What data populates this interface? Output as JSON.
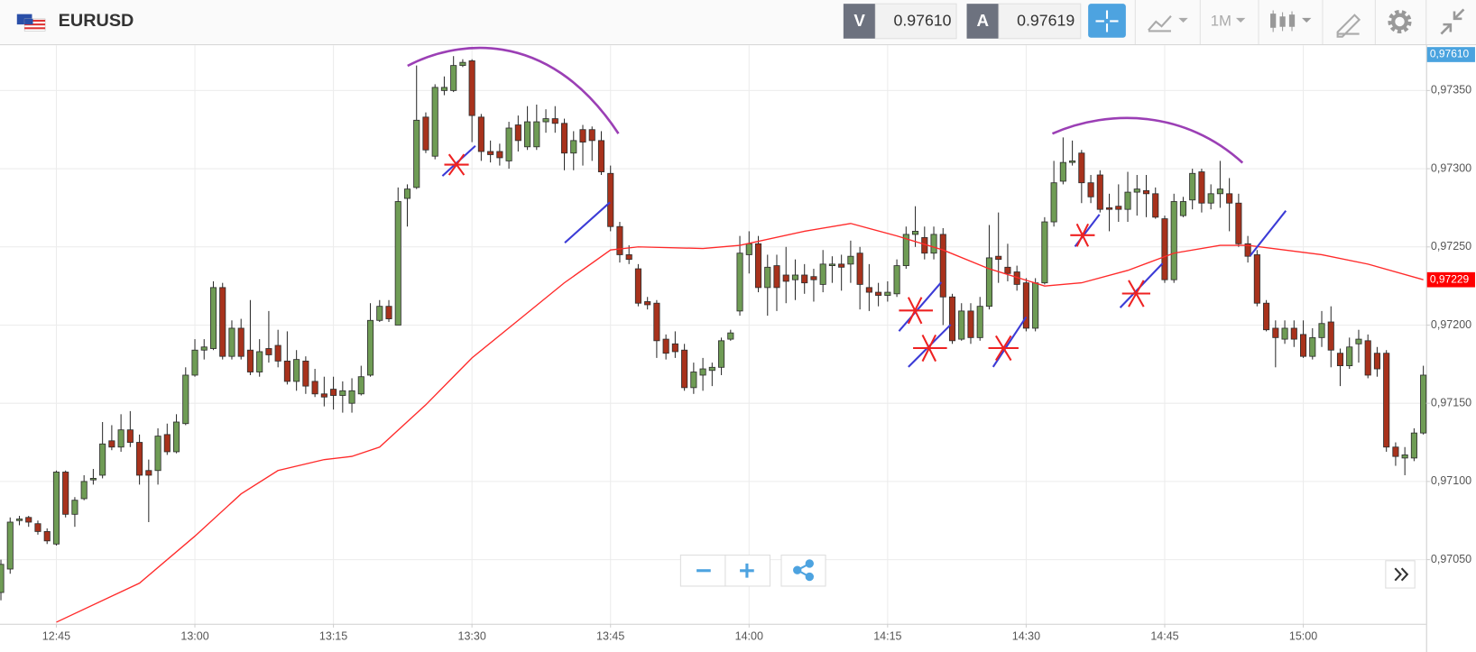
{
  "header": {
    "symbol": "EURUSD",
    "bid": {
      "label": "V",
      "price": "0.97610"
    },
    "ask": {
      "label": "A",
      "price": "0.97619"
    },
    "timeframe": "1M"
  },
  "chart_data": {
    "type": "candlestick",
    "up_color": "#6f9c55",
    "down_color": "#a8321c",
    "open": [
      0.97029,
      0.97044,
      0.97075,
      0.97077,
      0.97073,
      0.97068,
      0.9706,
      0.97106,
      0.97079,
      0.97089,
      0.97101,
      0.97104,
      0.97126,
      0.97122,
      0.97133,
      0.97125,
      0.97107,
      0.97107,
      0.9713,
      0.97119,
      0.97137,
      0.97168,
      0.97184,
      0.97185,
      0.97224,
      0.9718,
      0.97198,
      0.97184,
      0.9717,
      0.97185,
      0.97187,
      0.97177,
      0.97164,
      0.97177,
      0.97164,
      0.97156,
      0.97159,
      0.97155,
      0.9715,
      0.97156,
      0.97168,
      0.97203,
      0.97212,
      0.972,
      0.97281,
      0.97288,
      0.97333,
      0.97308,
      0.9735,
      0.9735,
      0.97366,
      0.97369,
      0.97333,
      0.97311,
      0.97311,
      0.97305,
      0.97328,
      0.97314,
      0.97314,
      0.9733,
      0.97332,
      0.97329,
      0.9731,
      0.97325,
      0.97325,
      0.97318,
      0.97297,
      0.97263,
      0.97245,
      0.97236,
      0.97215,
      0.97214,
      0.97191,
      0.97188,
      0.97184,
      0.9716,
      0.97168,
      0.97171,
      0.97173,
      0.97191,
      0.97209,
      0.97245,
      0.97252,
      0.97224,
      0.97238,
      0.97232,
      0.97229,
      0.97232,
      0.97231,
      0.97226,
      0.97238,
      0.97239,
      0.97239,
      0.97246,
      0.97224,
      0.97221,
      0.97219,
      0.9722,
      0.97238,
      0.97258,
      0.97256,
      0.97246,
      0.97258,
      0.97218,
      0.97191,
      0.97209,
      0.97192,
      0.97212,
      0.97244,
      0.97237,
      0.97234,
      0.97227,
      0.97198,
      0.97227,
      0.97266,
      0.97292,
      0.97304,
      0.9731,
      0.97291,
      0.97296,
      0.97275,
      0.97276,
      0.97274,
      0.97285,
      0.97286,
      0.97284,
      0.97268,
      0.97229,
      0.9727,
      0.9728,
      0.97298,
      0.97278,
      0.97284,
      0.97284,
      0.97278,
      0.97252,
      0.97245,
      0.97214,
      0.97198,
      0.97191,
      0.97198,
      0.97194,
      0.9718,
      0.97192,
      0.97202,
      0.97182,
      0.97174,
      0.97188,
      0.9719,
      0.97182,
      0.97182,
      0.97122,
      0.97115,
      0.97115,
      0.97131
    ],
    "high": [
      0.9705,
      0.97077,
      0.97078,
      0.97078,
      0.97075,
      0.9707,
      0.97107,
      0.97107,
      0.9709,
      0.97104,
      0.97108,
      0.97138,
      0.97136,
      0.97143,
      0.97145,
      0.9713,
      0.97114,
      0.97134,
      0.97137,
      0.97143,
      0.97173,
      0.97191,
      0.97191,
      0.97228,
      0.97227,
      0.97203,
      0.97204,
      0.97216,
      0.97191,
      0.97209,
      0.97197,
      0.97196,
      0.97184,
      0.9718,
      0.97172,
      0.97167,
      0.97167,
      0.97164,
      0.97166,
      0.97174,
      0.97214,
      0.97216,
      0.97216,
      0.97288,
      0.9729,
      0.97366,
      0.97336,
      0.97354,
      0.97359,
      0.97372,
      0.9737,
      0.9737,
      0.97335,
      0.97318,
      0.97316,
      0.9733,
      0.97334,
      0.9734,
      0.97341,
      0.97338,
      0.9734,
      0.97332,
      0.97324,
      0.97328,
      0.97327,
      0.97324,
      0.97302,
      0.97266,
      0.97251,
      0.97239,
      0.97218,
      0.97216,
      0.97194,
      0.97196,
      0.97188,
      0.97176,
      0.97179,
      0.97176,
      0.97192,
      0.97197,
      0.97257,
      0.9726,
      0.97257,
      0.97245,
      0.97245,
      0.9725,
      0.97242,
      0.97239,
      0.97236,
      0.97248,
      0.97244,
      0.97245,
      0.97254,
      0.9725,
      0.97239,
      0.97227,
      0.97228,
      0.97242,
      0.97263,
      0.97276,
      0.97263,
      0.97263,
      0.97262,
      0.9722,
      0.97214,
      0.97214,
      0.97218,
      0.97264,
      0.97272,
      0.97252,
      0.97238,
      0.9723,
      0.9723,
      0.97269,
      0.97305,
      0.9732,
      0.97318,
      0.97312,
      0.97296,
      0.97299,
      0.97284,
      0.9729,
      0.97298,
      0.97296,
      0.97296,
      0.97288,
      0.9727,
      0.97284,
      0.97282,
      0.973,
      0.973,
      0.9729,
      0.97305,
      0.97294,
      0.97284,
      0.97257,
      0.97248,
      0.97216,
      0.97203,
      0.97203,
      0.97203,
      0.97203,
      0.97198,
      0.97209,
      0.97212,
      0.97185,
      0.97192,
      0.97197,
      0.97194,
      0.97186,
      0.97184,
      0.97125,
      0.97122,
      0.97134,
      0.97174
    ],
    "low": [
      0.97024,
      0.97041,
      0.97072,
      0.97071,
      0.97066,
      0.9706,
      0.97059,
      0.97077,
      0.97071,
      0.97088,
      0.97098,
      0.97102,
      0.9712,
      0.97119,
      0.97122,
      0.97098,
      0.97074,
      0.97098,
      0.97117,
      0.97118,
      0.97136,
      0.97167,
      0.97178,
      0.97184,
      0.97178,
      0.97178,
      0.97178,
      0.97168,
      0.97167,
      0.97176,
      0.97173,
      0.97162,
      0.97158,
      0.97156,
      0.97154,
      0.97148,
      0.97146,
      0.97144,
      0.97144,
      0.97155,
      0.97167,
      0.97202,
      0.97202,
      0.972,
      0.97263,
      0.97287,
      0.9731,
      0.97306,
      0.97347,
      0.97349,
      0.97365,
      0.97317,
      0.97305,
      0.97304,
      0.97302,
      0.973,
      0.97311,
      0.97312,
      0.97312,
      0.97323,
      0.97323,
      0.97299,
      0.97299,
      0.97302,
      0.97305,
      0.97296,
      0.9726,
      0.9724,
      0.97239,
      0.97212,
      0.9721,
      0.97179,
      0.97178,
      0.97179,
      0.97158,
      0.97156,
      0.97158,
      0.97161,
      0.97168,
      0.9719,
      0.97206,
      0.97233,
      0.97221,
      0.97206,
      0.97209,
      0.97214,
      0.97216,
      0.9722,
      0.97215,
      0.97221,
      0.97227,
      0.97222,
      0.97227,
      0.9721,
      0.97209,
      0.97212,
      0.97215,
      0.97218,
      0.97236,
      0.9725,
      0.97242,
      0.97242,
      0.972,
      0.97188,
      0.9719,
      0.97188,
      0.9719,
      0.9721,
      0.97227,
      0.97228,
      0.97222,
      0.97196,
      0.97196,
      0.97226,
      0.97263,
      0.9729,
      0.97302,
      0.97278,
      0.97278,
      0.97272,
      0.9726,
      0.97266,
      0.97266,
      0.9727,
      0.97269,
      0.97268,
      0.97227,
      0.97227,
      0.97269,
      0.97274,
      0.97272,
      0.97274,
      0.97275,
      0.9726,
      0.9725,
      0.9724,
      0.97212,
      0.97196,
      0.97173,
      0.97188,
      0.97186,
      0.97179,
      0.97178,
      0.97186,
      0.97173,
      0.97161,
      0.97172,
      0.97176,
      0.97166,
      0.97167,
      0.97119,
      0.9711,
      0.97104,
      0.97113,
      0.9713
    ],
    "close": [
      0.97047,
      0.97074,
      0.97076,
      0.97074,
      0.97068,
      0.97062,
      0.97106,
      0.97079,
      0.97088,
      0.971,
      0.97102,
      0.97124,
      0.97122,
      0.97133,
      0.97125,
      0.97104,
      0.97104,
      0.97129,
      0.97119,
      0.97138,
      0.97168,
      0.97184,
      0.97186,
      0.97224,
      0.9718,
      0.97198,
      0.9718,
      0.9717,
      0.97183,
      0.97181,
      0.97177,
      0.97164,
      0.97178,
      0.97161,
      0.97156,
      0.97154,
      0.97155,
      0.97158,
      0.97158,
      0.97167,
      0.97203,
      0.97212,
      0.97204,
      0.97279,
      0.97287,
      0.97331,
      0.97312,
      0.97352,
      0.97352,
      0.97366,
      0.97368,
      0.97334,
      0.97311,
      0.97309,
      0.97307,
      0.97326,
      0.97318,
      0.9733,
      0.9733,
      0.97332,
      0.97329,
      0.9731,
      0.97318,
      0.97317,
      0.97318,
      0.97298,
      0.97263,
      0.97245,
      0.97242,
      0.97214,
      0.97213,
      0.9719,
      0.97182,
      0.97183,
      0.9716,
      0.9717,
      0.97172,
      0.97173,
      0.9719,
      0.97195,
      0.97246,
      0.97252,
      0.97224,
      0.97237,
      0.97224,
      0.97228,
      0.97232,
      0.97227,
      0.97229,
      0.97239,
      0.97239,
      0.97237,
      0.97244,
      0.97226,
      0.97221,
      0.97219,
      0.97221,
      0.97238,
      0.97258,
      0.9726,
      0.97246,
      0.97258,
      0.97218,
      0.9719,
      0.97209,
      0.97192,
      0.97212,
      0.97243,
      0.97242,
      0.97233,
      0.97226,
      0.97198,
      0.97227,
      0.97266,
      0.97291,
      0.97304,
      0.97305,
      0.97291,
      0.97282,
      0.97274,
      0.97274,
      0.97274,
      0.97285,
      0.97287,
      0.97284,
      0.97269,
      0.97229,
      0.97279,
      0.97279,
      0.97297,
      0.97278,
      0.97284,
      0.97287,
      0.97278,
      0.97252,
      0.97244,
      0.97214,
      0.97197,
      0.97192,
      0.97198,
      0.97191,
      0.9718,
      0.97192,
      0.97201,
      0.97184,
      0.97174,
      0.97186,
      0.97191,
      0.97168,
      0.97172,
      0.97122,
      0.97116,
      0.97117,
      0.97131,
      0.97168
    ],
    "moving_average": {
      "color": "#ff2a2a",
      "x": [
        6,
        15,
        21,
        26,
        30,
        35,
        38,
        41,
        46,
        51,
        56,
        61,
        66,
        69,
        76,
        80,
        87,
        92,
        97,
        102,
        107,
        113,
        117,
        122,
        127,
        132,
        135,
        143,
        148,
        154
      ],
      "values": [
        0.9701,
        0.97035,
        0.97065,
        0.97092,
        0.97107,
        0.97114,
        0.97116,
        0.97122,
        0.97149,
        0.97179,
        0.97203,
        0.97227,
        0.97248,
        0.9725,
        0.97249,
        0.97251,
        0.9726,
        0.97265,
        0.97257,
        0.97248,
        0.97236,
        0.97225,
        0.97227,
        0.97235,
        0.97246,
        0.97251,
        0.97251,
        0.97245,
        0.97239,
        0.97229
      ]
    },
    "last_ma": {
      "value": 0.97229,
      "label": "0,97229",
      "color": "#ff0000"
    },
    "current_price": {
      "value": 0.9761,
      "label": "0,97610",
      "color": "#4aa3df"
    },
    "xlim": [
      -0.1,
      154.3
    ],
    "xticks": [
      {
        "value": 6,
        "label": "12:45"
      },
      {
        "value": 21,
        "label": "13:00"
      },
      {
        "value": 36,
        "label": "13:15"
      },
      {
        "value": 51,
        "label": "13:30"
      },
      {
        "value": 66,
        "label": "13:45"
      },
      {
        "value": 81,
        "label": "14:00"
      },
      {
        "value": 96,
        "label": "14:15"
      },
      {
        "value": 111,
        "label": "14:30"
      },
      {
        "value": 126,
        "label": "14:45"
      },
      {
        "value": 141,
        "label": "15:00"
      }
    ],
    "ylim": [
      0.97009,
      0.97379
    ],
    "yticks": [
      {
        "value": 0.9705,
        "label": "0,97050"
      },
      {
        "value": 0.971,
        "label": "0,97100"
      },
      {
        "value": 0.9715,
        "label": "0,97150"
      },
      {
        "value": 0.972,
        "label": "0,97200"
      },
      {
        "value": 0.9725,
        "label": "0,97250"
      },
      {
        "value": 0.973,
        "label": "0,97300"
      },
      {
        "value": 0.9735,
        "label": "0,97350"
      }
    ],
    "grid": true
  }
}
